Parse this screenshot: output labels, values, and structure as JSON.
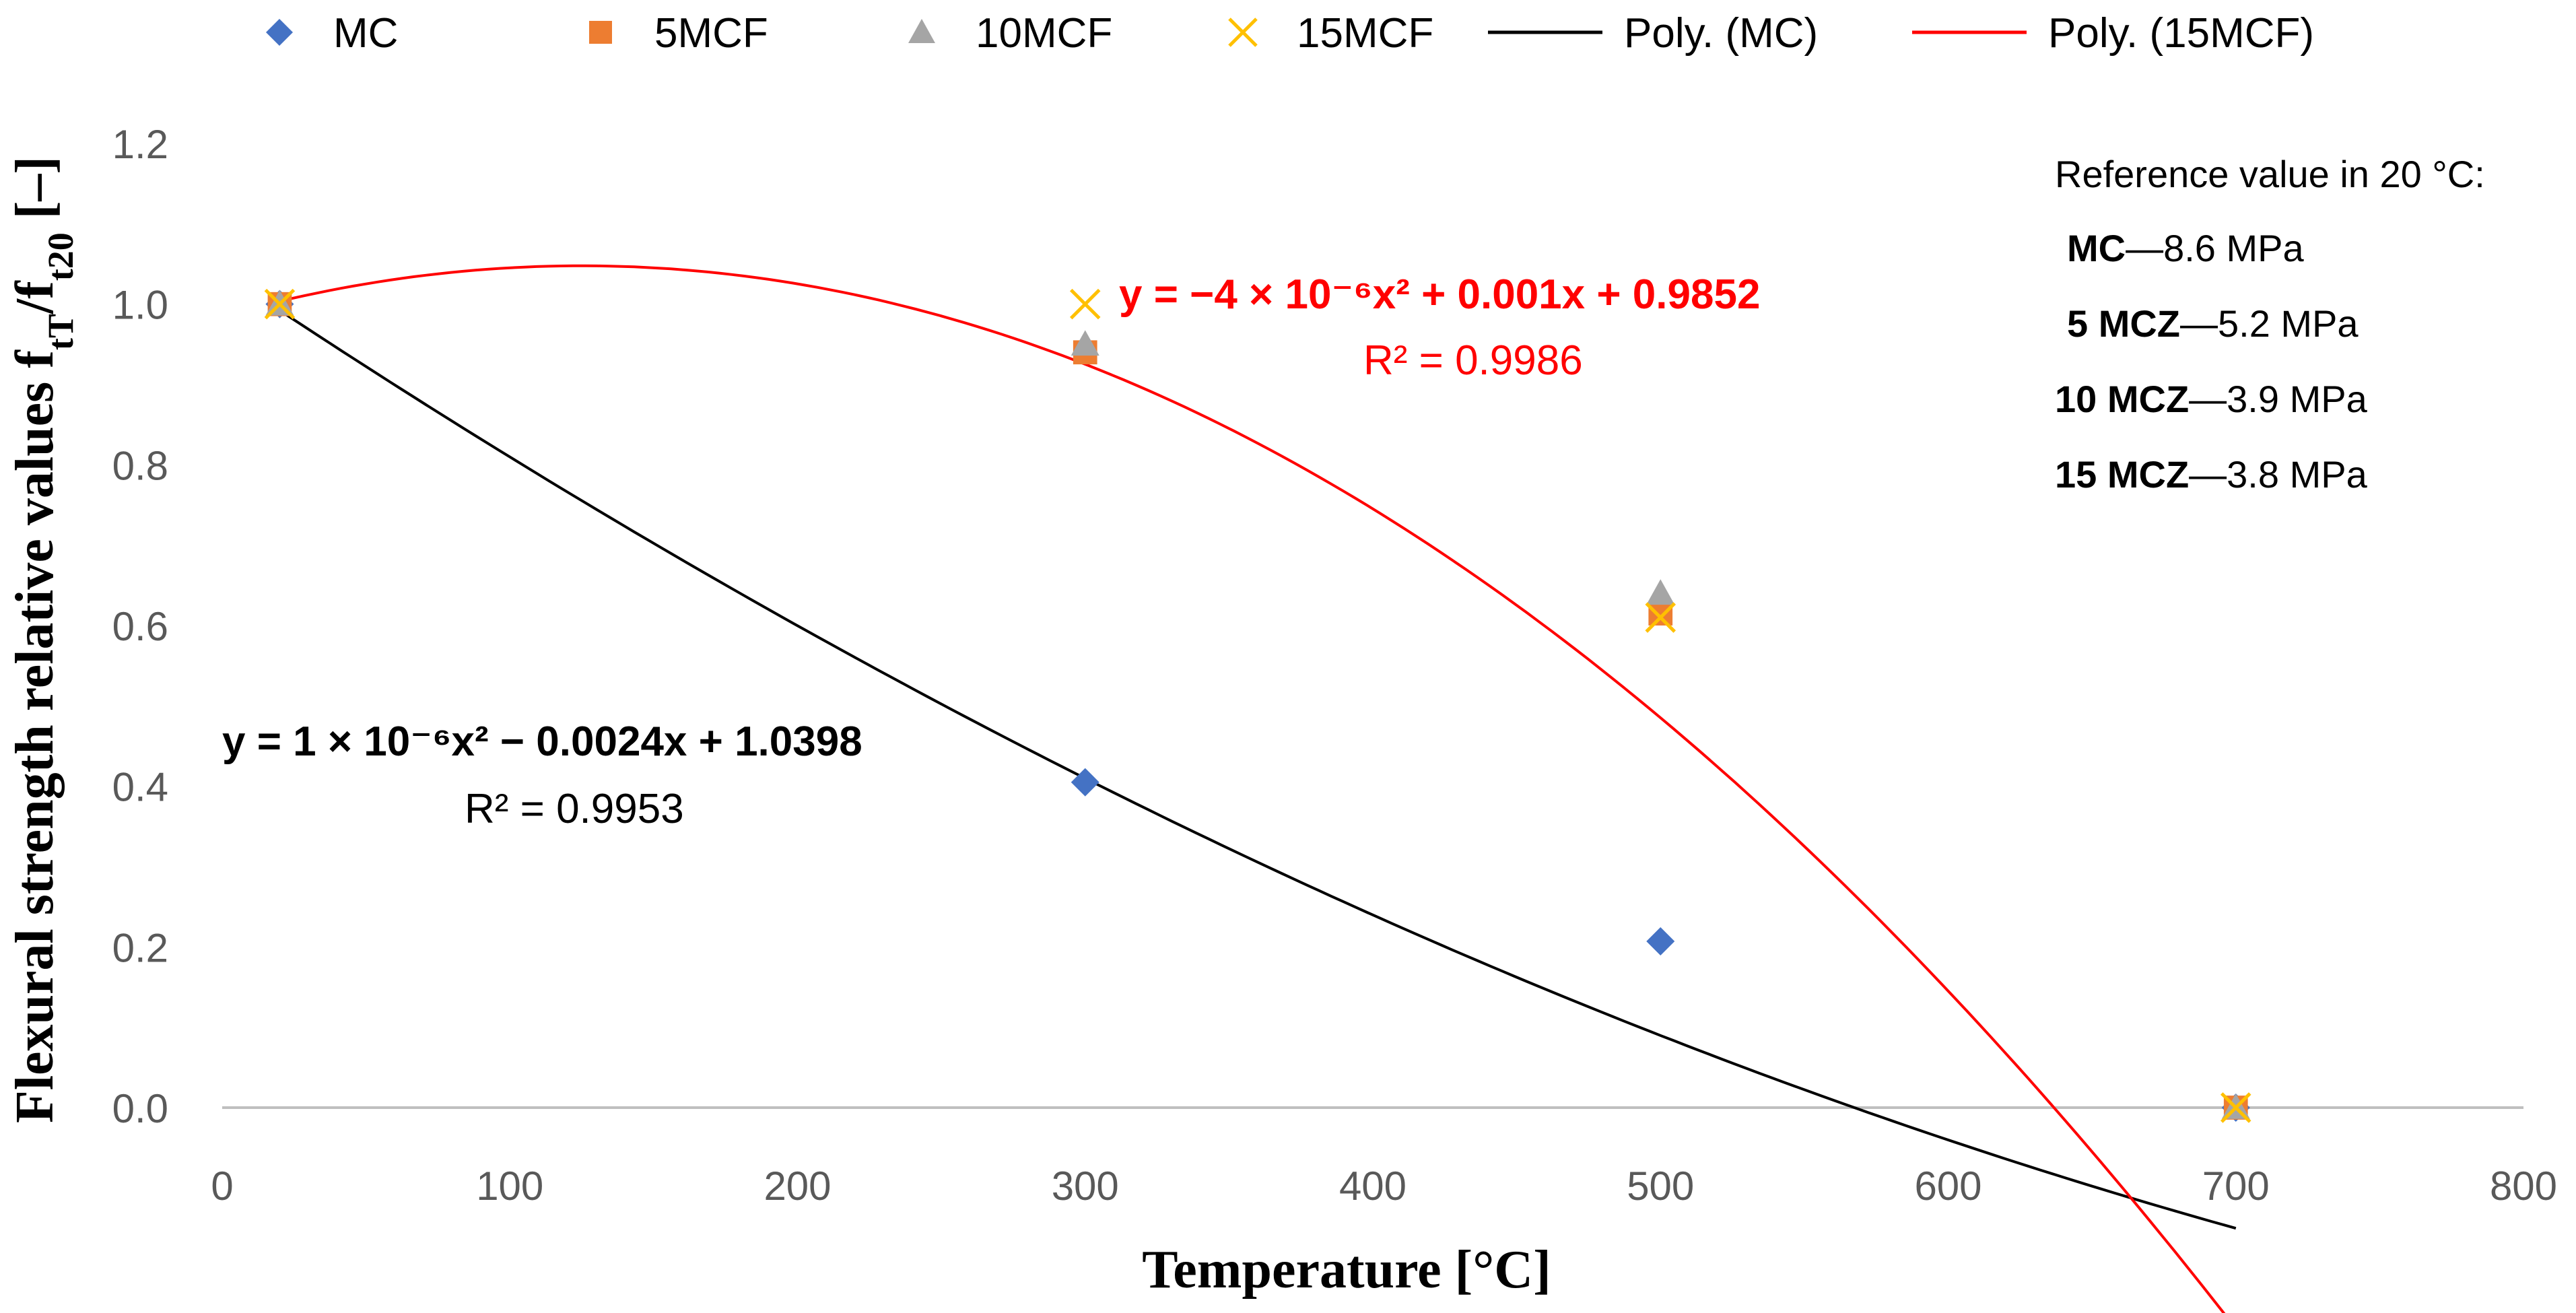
{
  "chart_data": {
    "type": "scatter",
    "title": "",
    "xlabel": "Temperature [°C]",
    "ylabel": {
      "main": "Flexural strength relative values f",
      "sub1": "tT",
      "mid": "/f",
      "sub2": "t20",
      "tail": " [–]"
    },
    "xlim": [
      0,
      800
    ],
    "ylim": [
      0,
      1.2
    ],
    "x_ticks": [
      0,
      100,
      200,
      300,
      400,
      500,
      600,
      700,
      800
    ],
    "y_ticks": [
      0.0,
      0.2,
      0.4,
      0.6,
      0.8,
      1.0,
      1.2
    ],
    "x_tick_labels": [
      "0",
      "100",
      "200",
      "300",
      "400",
      "500",
      "600",
      "700",
      "800"
    ],
    "y_tick_labels": [
      "0.0",
      "0.2",
      "0.4",
      "0.6",
      "0.8",
      "1.0",
      "1.2"
    ],
    "grid": false,
    "legend_position": "top",
    "series": [
      {
        "name": "MC",
        "marker": "diamond",
        "color": "#4472C4",
        "points": [
          {
            "x": 20,
            "y": 1.0
          },
          {
            "x": 300,
            "y": 0.405
          },
          {
            "x": 500,
            "y": 0.207
          },
          {
            "x": 700,
            "y": 0.0
          }
        ]
      },
      {
        "name": "5MCF",
        "marker": "square",
        "color": "#ED7D31",
        "points": [
          {
            "x": 20,
            "y": 1.0
          },
          {
            "x": 300,
            "y": 0.94
          },
          {
            "x": 500,
            "y": 0.615
          },
          {
            "x": 700,
            "y": 0.0
          }
        ]
      },
      {
        "name": "10MCF",
        "marker": "triangle",
        "color": "#A5A5A5",
        "points": [
          {
            "x": 20,
            "y": 1.0
          },
          {
            "x": 300,
            "y": 0.95
          },
          {
            "x": 500,
            "y": 0.64
          },
          {
            "x": 700,
            "y": 0.0
          }
        ]
      },
      {
        "name": "15MCF",
        "marker": "x",
        "color": "#FFC000",
        "points": [
          {
            "x": 20,
            "y": 1.0
          },
          {
            "x": 300,
            "y": 1.0
          },
          {
            "x": 500,
            "y": 0.61
          },
          {
            "x": 700,
            "y": 0.0
          }
        ]
      }
    ],
    "trendlines": [
      {
        "name": "Poly. (MC)",
        "color": "#000000",
        "coefficients": [
          1e-06,
          -0.0024,
          1.0398
        ],
        "x_range": [
          20,
          700
        ],
        "equation": "y = 1 × 10⁻⁶x² − 0.0024x + 1.0398",
        "r2": "R² = 0.9953"
      },
      {
        "name": "Poly. (15MCF)",
        "color": "#FF0000",
        "coefficients": [
          -4e-06,
          0.001,
          0.9852
        ],
        "x_range": [
          20,
          700
        ],
        "equation": "y = −4 × 10⁻⁶x² + 0.001x + 0.9852",
        "r2": "R² = 0.9986"
      }
    ],
    "annotation": {
      "heading": "Reference value in 20 °C:",
      "rows": [
        {
          "label": "MC",
          "value": "8.6 MPa"
        },
        {
          "label": "5 MCZ",
          "value": "5.2 MPa"
        },
        {
          "label": "10 MCZ",
          "value": "3.9 MPa"
        },
        {
          "label": "15 MCZ",
          "value": "3.8 MPa"
        }
      ]
    }
  }
}
